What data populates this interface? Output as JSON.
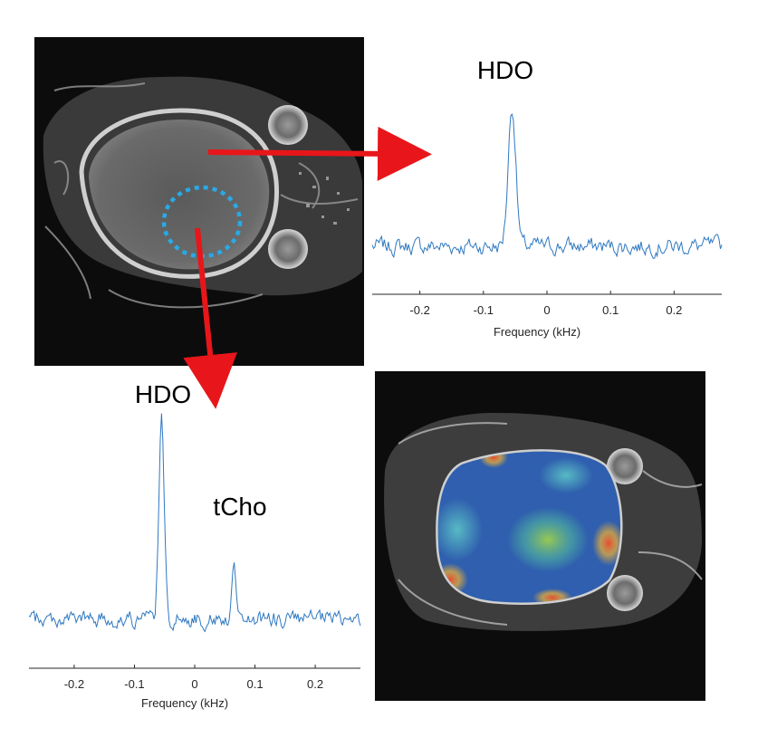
{
  "figure": {
    "mri_image": {
      "description_label": "MRI"
    },
    "arrow_color": "#e8161a",
    "roi_color": "#29a9e6",
    "spectrum_color": "#2f78c0"
  },
  "chart_data": [
    {
      "type": "line",
      "title": "HDO",
      "xlabel": "Frequency (kHz)",
      "ylabel": "",
      "xlim": [
        -0.275,
        0.275
      ],
      "xticks": [
        -0.2,
        -0.1,
        0,
        0.1,
        0.2
      ],
      "xtick_labels": [
        "-0.2",
        "-0.1",
        "0",
        "0.1",
        "0.2"
      ],
      "peaks": [
        {
          "name": "HDO",
          "x": -0.055,
          "height": 1.0,
          "width": 0.006
        }
      ],
      "baseline_noise": 0.05,
      "annotations": []
    },
    {
      "type": "line",
      "title": "HDO",
      "xlabel": "Frequency (kHz)",
      "ylabel": "",
      "xlim": [
        -0.275,
        0.275
      ],
      "xticks": [
        -0.2,
        -0.1,
        0,
        0.1,
        0.2
      ],
      "xtick_labels": [
        "-0.2",
        "-0.1",
        "0",
        "0.1",
        "0.2"
      ],
      "peaks": [
        {
          "name": "HDO",
          "x": -0.055,
          "height": 1.0,
          "width": 0.0045
        },
        {
          "name": "tCho",
          "x": 0.065,
          "height": 0.32,
          "width": 0.0035
        }
      ],
      "baseline_noise": 0.035,
      "annotations": [
        "tCho"
      ]
    }
  ]
}
